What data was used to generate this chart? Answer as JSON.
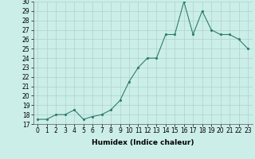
{
  "x": [
    0,
    1,
    2,
    3,
    4,
    5,
    6,
    7,
    8,
    9,
    10,
    11,
    12,
    13,
    14,
    15,
    16,
    17,
    18,
    19,
    20,
    21,
    22,
    23
  ],
  "y": [
    17.5,
    17.5,
    18.0,
    18.0,
    18.5,
    17.5,
    17.8,
    18.0,
    18.5,
    19.5,
    21.5,
    23.0,
    24.0,
    24.0,
    26.5,
    26.5,
    30.0,
    26.5,
    29.0,
    27.0,
    26.5,
    26.5,
    26.0,
    25.0
  ],
  "xlabel": "Humidex (Indice chaleur)",
  "ylim": [
    17,
    30
  ],
  "xlim_min": -0.5,
  "xlim_max": 23.5,
  "yticks": [
    17,
    18,
    19,
    20,
    21,
    22,
    23,
    24,
    25,
    26,
    27,
    28,
    29,
    30
  ],
  "xticks": [
    0,
    1,
    2,
    3,
    4,
    5,
    6,
    7,
    8,
    9,
    10,
    11,
    12,
    13,
    14,
    15,
    16,
    17,
    18,
    19,
    20,
    21,
    22,
    23
  ],
  "xtick_labels": [
    "0",
    "1",
    "2",
    "3",
    "4",
    "5",
    "6",
    "7",
    "8",
    "9",
    "10",
    "11",
    "12",
    "13",
    "14",
    "15",
    "16",
    "17",
    "18",
    "19",
    "20",
    "21",
    "22",
    "23"
  ],
  "line_color": "#2e7d6e",
  "bg_color": "#cceee8",
  "grid_color": "#aad4cc",
  "label_fontsize": 6.5,
  "tick_fontsize": 5.5
}
